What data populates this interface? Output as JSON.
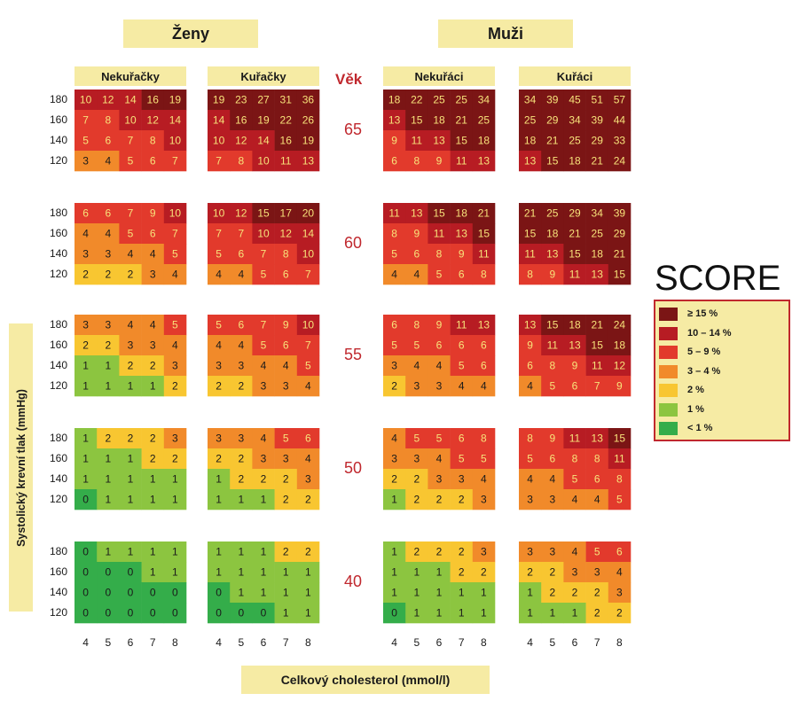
{
  "headers": {
    "women": "Ženy",
    "men": "Muži"
  },
  "subheaders": {
    "women_nonsmoker": "Nekuřačky",
    "women_smoker": "Kuřačky",
    "men_nonsmoker": "Nekuřáci",
    "men_smoker": "Kuřáci"
  },
  "vek_label": "Věk",
  "score_title": "SCORE",
  "yaxis_title": "Systolický krevní tlak (mmHg)",
  "xaxis_title": "Celkový cholesterol (mmol/l)",
  "legend": [
    {
      "label": "≥ 15 %",
      "color": "#7b1515"
    },
    {
      "label": "10 – 14 %",
      "color": "#b71c23"
    },
    {
      "label": "5 – 9 %",
      "color": "#e23a2c"
    },
    {
      "label": "3 – 4 %",
      "color": "#f18a2a"
    },
    {
      "label": "2 %",
      "color": "#f8c631"
    },
    {
      "label": "1 %",
      "color": "#8cc540"
    },
    {
      "label": "< 1 %",
      "color": "#34ad4a"
    }
  ],
  "chart_data": {
    "type": "heatmap",
    "title": "SCORE",
    "xlabel": "Celkový cholesterol (mmol/l)",
    "ylabel": "Systolický krevní tlak (mmHg)",
    "x_categories": [
      "4",
      "5",
      "6",
      "7",
      "8"
    ],
    "y_categories": [
      "180",
      "160",
      "140",
      "120"
    ],
    "panels": [
      {
        "age": "65",
        "values": {
          "women_nonsmoker": [
            [
              10,
              12,
              14,
              16,
              19
            ],
            [
              7,
              8,
              10,
              12,
              14
            ],
            [
              5,
              6,
              7,
              8,
              10
            ],
            [
              3,
              4,
              5,
              6,
              7
            ]
          ],
          "women_smoker": [
            [
              19,
              23,
              27,
              31,
              36
            ],
            [
              14,
              16,
              19,
              22,
              26
            ],
            [
              10,
              12,
              14,
              16,
              19
            ],
            [
              7,
              8,
              10,
              11,
              13
            ]
          ],
          "men_nonsmoker": [
            [
              18,
              22,
              25,
              25,
              34
            ],
            [
              13,
              15,
              18,
              21,
              25
            ],
            [
              9,
              11,
              13,
              15,
              18
            ],
            [
              6,
              8,
              9,
              11,
              13
            ]
          ],
          "men_smoker": [
            [
              34,
              39,
              45,
              51,
              57
            ],
            [
              25,
              29,
              34,
              39,
              44
            ],
            [
              18,
              21,
              25,
              29,
              33
            ],
            [
              13,
              15,
              18,
              21,
              24
            ]
          ]
        }
      },
      {
        "age": "60",
        "values": {
          "women_nonsmoker": [
            [
              6,
              6,
              7,
              9,
              10
            ],
            [
              4,
              4,
              5,
              6,
              7
            ],
            [
              3,
              3,
              4,
              4,
              5
            ],
            [
              2,
              2,
              2,
              3,
              4
            ]
          ],
          "women_smoker": [
            [
              10,
              12,
              15,
              17,
              20
            ],
            [
              7,
              7,
              10,
              12,
              14
            ],
            [
              5,
              6,
              7,
              8,
              10
            ],
            [
              4,
              4,
              5,
              6,
              7
            ]
          ],
          "men_nonsmoker": [
            [
              11,
              13,
              15,
              18,
              21
            ],
            [
              8,
              9,
              11,
              13,
              15
            ],
            [
              5,
              6,
              8,
              9,
              11
            ],
            [
              4,
              4,
              5,
              6,
              8
            ]
          ],
          "men_smoker": [
            [
              21,
              25,
              29,
              34,
              39
            ],
            [
              15,
              18,
              21,
              25,
              29
            ],
            [
              11,
              13,
              15,
              18,
              21
            ],
            [
              8,
              9,
              11,
              13,
              15
            ]
          ]
        }
      },
      {
        "age": "55",
        "values": {
          "women_nonsmoker": [
            [
              3,
              3,
              4,
              4,
              5
            ],
            [
              2,
              2,
              3,
              3,
              4
            ],
            [
              1,
              1,
              2,
              2,
              3
            ],
            [
              1,
              1,
              1,
              1,
              2
            ]
          ],
          "women_smoker": [
            [
              5,
              6,
              7,
              9,
              10
            ],
            [
              4,
              4,
              5,
              6,
              7
            ],
            [
              3,
              3,
              4,
              4,
              5
            ],
            [
              2,
              2,
              3,
              3,
              4
            ]
          ],
          "men_nonsmoker": [
            [
              6,
              8,
              9,
              11,
              13
            ],
            [
              5,
              5,
              6,
              6,
              6
            ],
            [
              3,
              4,
              4,
              5,
              6
            ],
            [
              2,
              3,
              3,
              4,
              4
            ]
          ],
          "men_smoker": [
            [
              13,
              15,
              18,
              21,
              24
            ],
            [
              9,
              11,
              13,
              15,
              18
            ],
            [
              6,
              8,
              9,
              11,
              12
            ],
            [
              4,
              5,
              6,
              7,
              9
            ]
          ]
        }
      },
      {
        "age": "50",
        "values": {
          "women_nonsmoker": [
            [
              1,
              2,
              2,
              2,
              3
            ],
            [
              1,
              1,
              1,
              2,
              2
            ],
            [
              1,
              1,
              1,
              1,
              1
            ],
            [
              0,
              1,
              1,
              1,
              1
            ]
          ],
          "women_smoker": [
            [
              3,
              3,
              4,
              5,
              6
            ],
            [
              2,
              2,
              3,
              3,
              4
            ],
            [
              1,
              2,
              2,
              2,
              3
            ],
            [
              1,
              1,
              1,
              2,
              2
            ]
          ],
          "men_nonsmoker": [
            [
              4,
              5,
              5,
              6,
              8
            ],
            [
              3,
              3,
              4,
              5,
              5
            ],
            [
              2,
              2,
              3,
              3,
              4
            ],
            [
              1,
              2,
              2,
              2,
              3
            ]
          ],
          "men_smoker": [
            [
              8,
              9,
              11,
              13,
              15
            ],
            [
              5,
              6,
              8,
              8,
              11
            ],
            [
              4,
              4,
              5,
              6,
              8
            ],
            [
              3,
              3,
              4,
              4,
              5
            ]
          ]
        }
      },
      {
        "age": "40",
        "values": {
          "women_nonsmoker": [
            [
              0,
              1,
              1,
              1,
              1
            ],
            [
              0,
              0,
              0,
              1,
              1
            ],
            [
              0,
              0,
              0,
              0,
              0
            ],
            [
              0,
              0,
              0,
              0,
              0
            ]
          ],
          "women_smoker": [
            [
              1,
              1,
              1,
              2,
              2
            ],
            [
              1,
              1,
              1,
              1,
              1
            ],
            [
              0,
              1,
              1,
              1,
              1
            ],
            [
              0,
              0,
              0,
              1,
              1
            ]
          ],
          "men_nonsmoker": [
            [
              1,
              2,
              2,
              2,
              3
            ],
            [
              1,
              1,
              1,
              2,
              2
            ],
            [
              1,
              1,
              1,
              1,
              1
            ],
            [
              0,
              1,
              1,
              1,
              1
            ]
          ],
          "men_smoker": [
            [
              3,
              3,
              4,
              5,
              6
            ],
            [
              2,
              2,
              3,
              3,
              4
            ],
            [
              1,
              2,
              2,
              2,
              3
            ],
            [
              1,
              1,
              1,
              2,
              2
            ]
          ]
        }
      }
    ]
  }
}
